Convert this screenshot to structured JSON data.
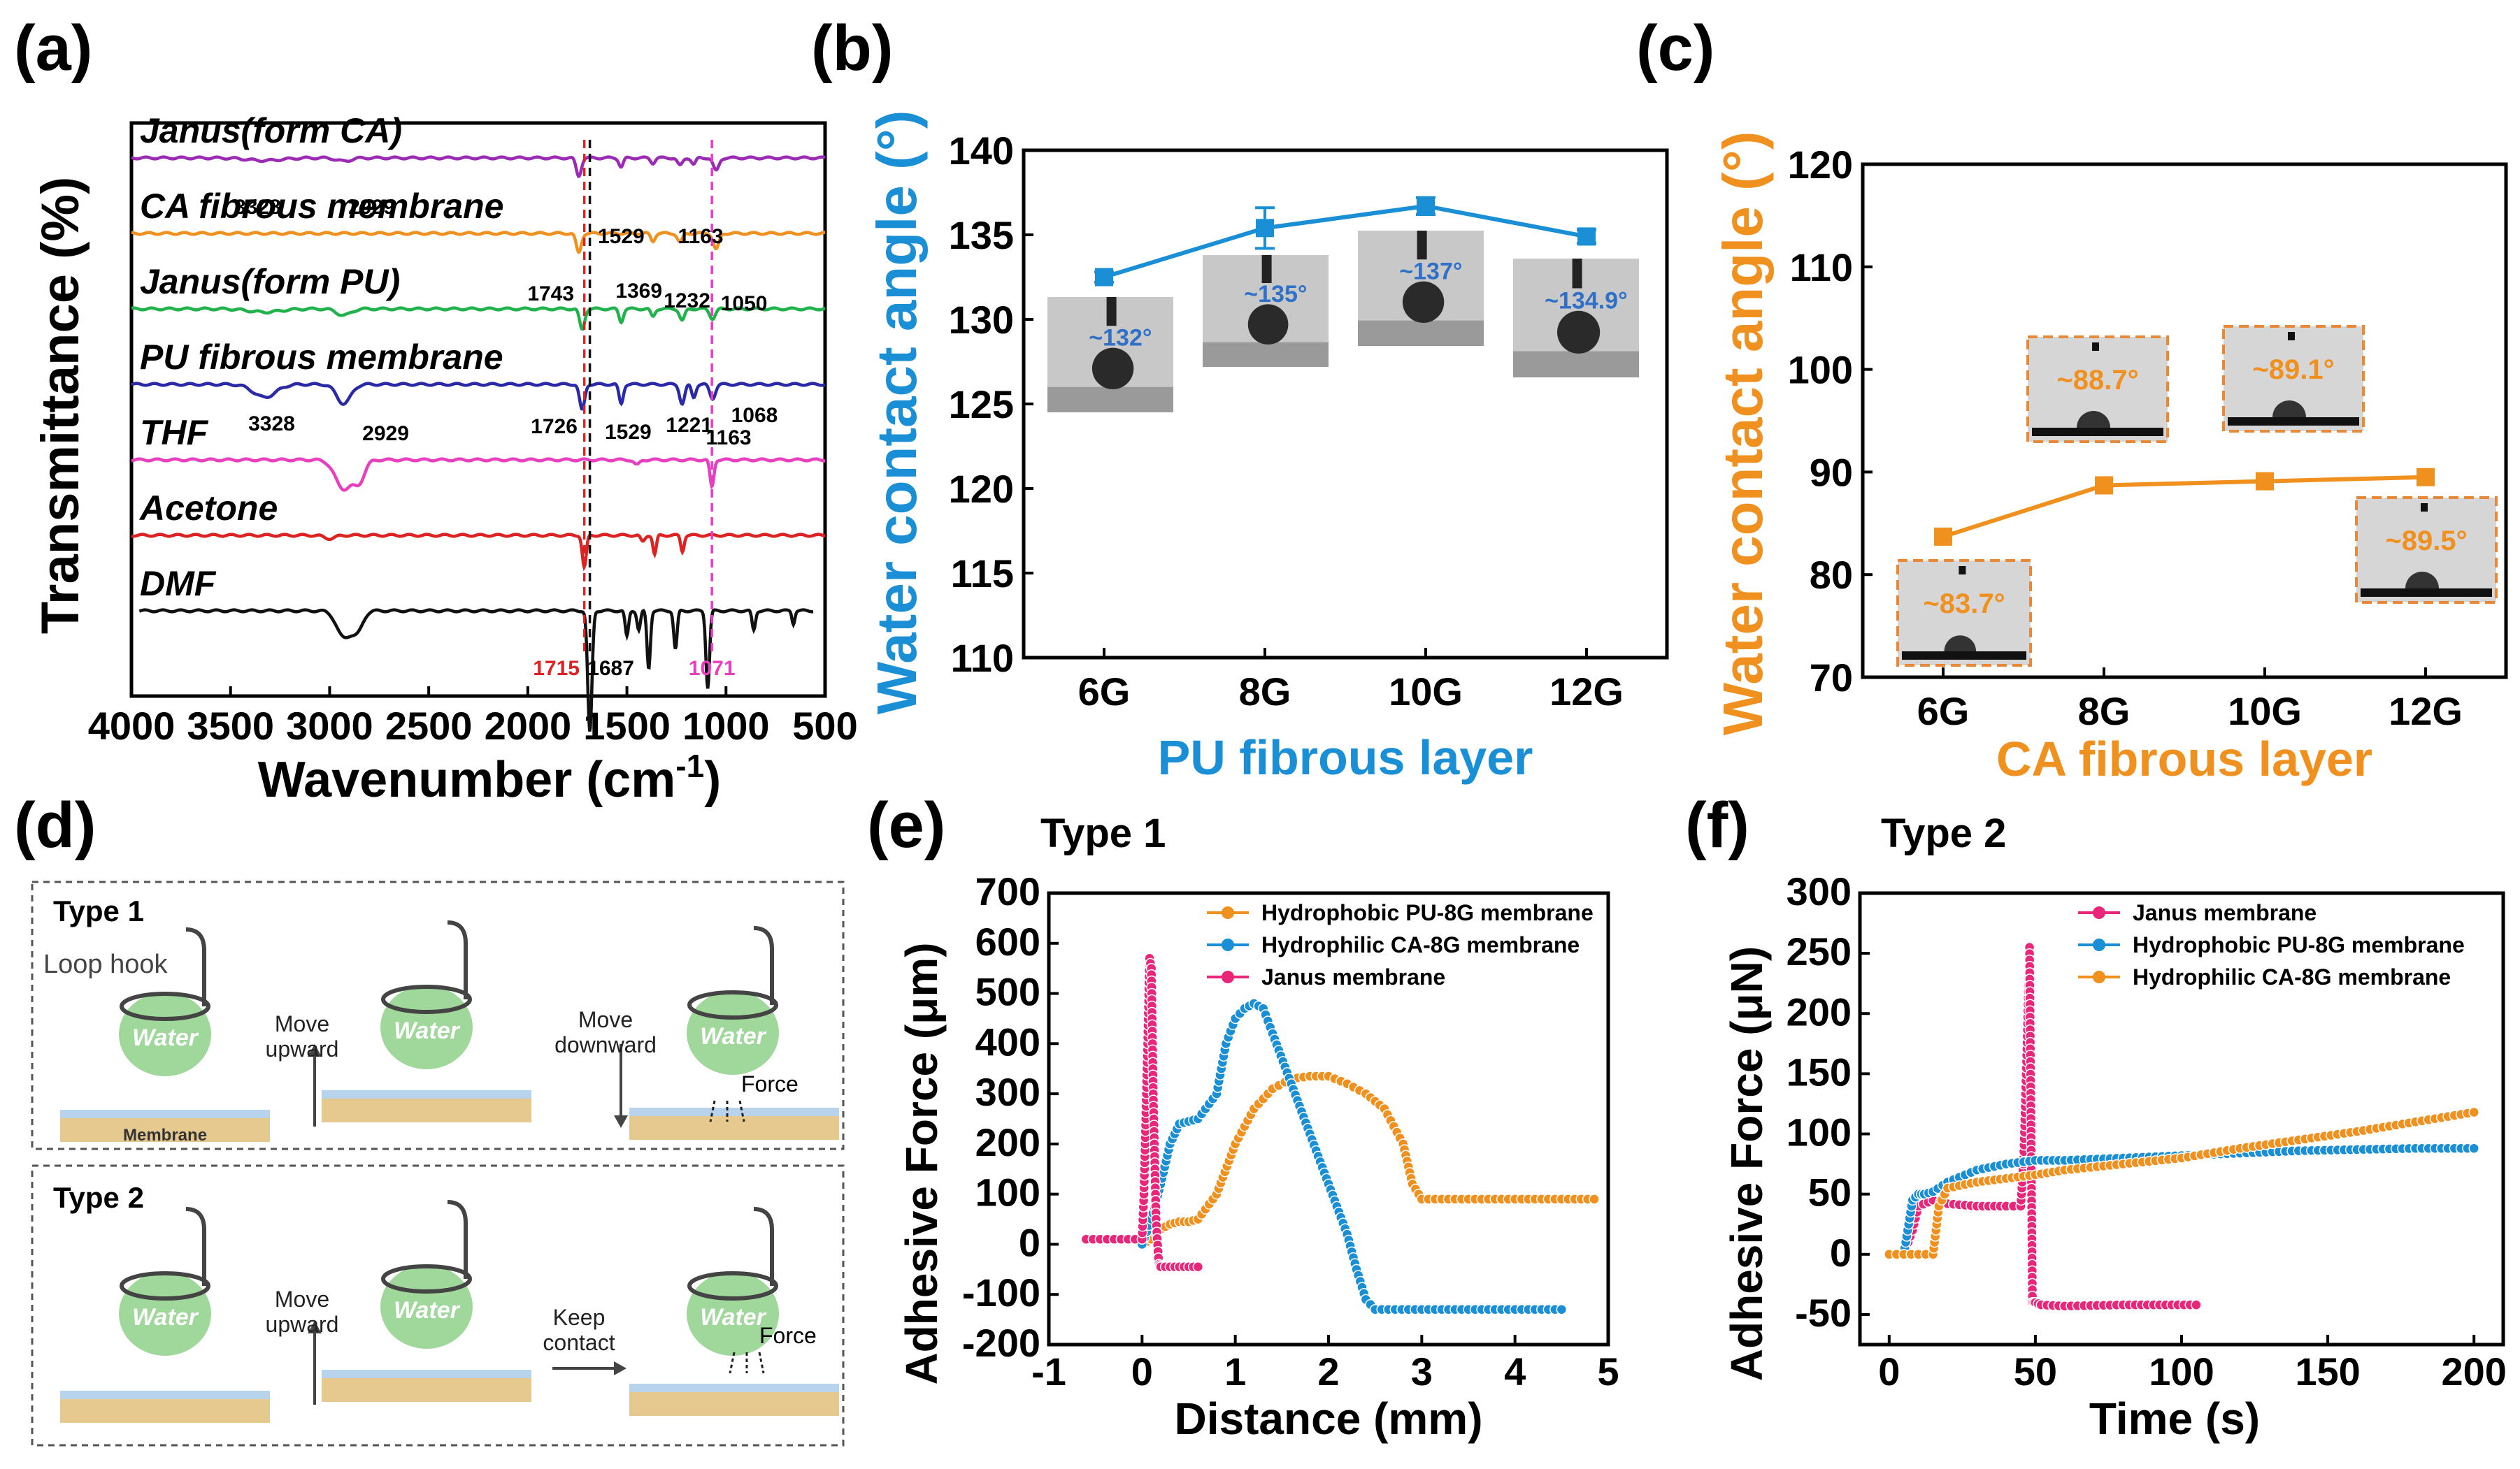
{
  "panel_labels": {
    "a": "(a)",
    "b": "(b)",
    "c": "(c)",
    "d": "(d)",
    "e": "(e)",
    "f": "(f)"
  },
  "chart_data": [
    {
      "panel": "a",
      "type": "line",
      "xlabel": "Wavenumber",
      "xlabel_unit": "(cm",
      "xlabel_sup": "-1",
      "xlabel_close": ")",
      "ylabel": "Transmittance (%)",
      "xlim": [
        4000,
        500
      ],
      "xticks": [
        4000,
        3500,
        3000,
        2500,
        2000,
        1500,
        1000,
        500
      ],
      "series": [
        {
          "name": "Janus(form CA)",
          "color": "#9b2bb5",
          "baseline": 1.0,
          "peaks": [
            [
              3328,
              0.04,
              120
            ],
            [
              2929,
              0.05,
              50
            ],
            [
              1743,
              0.28,
              18
            ],
            [
              1529,
              0.14,
              15
            ],
            [
              1369,
              0.08,
              15
            ],
            [
              1232,
              0.12,
              18
            ],
            [
              1163,
              0.1,
              15
            ],
            [
              1050,
              0.2,
              20
            ]
          ]
        },
        {
          "name": "CA fibrous membrane",
          "color": "#f0901e",
          "baseline": 2.0,
          "peaks": [
            [
              1743,
              0.3,
              18
            ],
            [
              1369,
              0.12,
              15
            ],
            [
              1232,
              0.14,
              18
            ],
            [
              1050,
              0.25,
              20
            ]
          ]
        },
        {
          "name": "Janus(form PU)",
          "color": "#22b24c",
          "baseline": 3.0,
          "peaks": [
            [
              3328,
              0.05,
              110
            ],
            [
              2929,
              0.1,
              50
            ],
            [
              1726,
              0.32,
              18
            ],
            [
              1529,
              0.2,
              15
            ],
            [
              1369,
              0.12,
              15
            ],
            [
              1221,
              0.18,
              18
            ],
            [
              1068,
              0.15,
              20
            ]
          ]
        },
        {
          "name": "PU fibrous membrane",
          "color": "#2a2aa8",
          "baseline": 4.0,
          "peaks": [
            [
              3328,
              0.2,
              80
            ],
            [
              2929,
              0.3,
              50
            ],
            [
              1726,
              0.4,
              18
            ],
            [
              1529,
              0.3,
              15
            ],
            [
              1221,
              0.3,
              18
            ],
            [
              1163,
              0.2,
              15
            ],
            [
              1068,
              0.22,
              20
            ]
          ]
        },
        {
          "name": "THF",
          "color": "#e83fc0",
          "baseline": 5.0,
          "peaks": [
            [
              2929,
              0.45,
              60
            ],
            [
              2850,
              0.3,
              40
            ],
            [
              1450,
              0.08,
              20
            ],
            [
              1071,
              0.42,
              14
            ]
          ]
        },
        {
          "name": "Acetone",
          "color": "#dd2222",
          "baseline": 6.0,
          "peaks": [
            [
              3000,
              0.05,
              40
            ],
            [
              1715,
              0.5,
              14
            ],
            [
              1420,
              0.1,
              15
            ],
            [
              1360,
              0.3,
              12
            ],
            [
              1220,
              0.25,
              12
            ]
          ]
        },
        {
          "name": "DMF",
          "color": "#111111",
          "baseline": 7.0,
          "peaks": [
            [
              2930,
              0.4,
              50
            ],
            [
              2860,
              0.3,
              40
            ],
            [
              1687,
              1.9,
              15
            ],
            [
              1500,
              0.4,
              12
            ],
            [
              1440,
              0.3,
              12
            ],
            [
              1390,
              0.9,
              12
            ],
            [
              1255,
              0.6,
              12
            ],
            [
              1092,
              1.2,
              13
            ],
            [
              860,
              0.3,
              12
            ],
            [
              660,
              0.2,
              10
            ]
          ]
        }
      ],
      "annotations": [
        "3328",
        "2929",
        "1529",
        "1163",
        "1743",
        "1369",
        "1232",
        "1050",
        "3328",
        "2929",
        "1726",
        "1529",
        "1221",
        "1163",
        "1068"
      ],
      "ref_lines": [
        {
          "x": 1715,
          "color": "#dd2222",
          "label": "1715"
        },
        {
          "x": 1687,
          "color": "#111111",
          "label": "1687"
        },
        {
          "x": 1071,
          "color": "#e83fc0",
          "label": "1071"
        }
      ]
    },
    {
      "panel": "b",
      "type": "line",
      "xlabel": "PU fibrous layer",
      "ylabel": "Water contact angle (°)",
      "categories": [
        "6G",
        "8G",
        "10G",
        "12G"
      ],
      "values": [
        132.5,
        135.4,
        136.7,
        134.9
      ],
      "errors": [
        0.3,
        1.2,
        0.5,
        0.4
      ],
      "ylim": [
        110,
        140
      ],
      "yticks": [
        110,
        115,
        120,
        125,
        130,
        135,
        140
      ],
      "color": "#1a8fd6",
      "insets": [
        "~132°",
        "~135°",
        "~137°",
        "~134.9°"
      ]
    },
    {
      "panel": "c",
      "type": "line",
      "xlabel": "CA fibrous layer",
      "ylabel": "Water contact angle (°)",
      "categories": [
        "6G",
        "8G",
        "10G",
        "12G"
      ],
      "values": [
        83.7,
        88.7,
        89.1,
        89.5
      ],
      "ylim": [
        70,
        120
      ],
      "yticks": [
        70,
        80,
        90,
        100,
        110,
        120
      ],
      "color": "#f0901e",
      "insets": [
        "~83.7°",
        "~88.7°",
        "~89.1°",
        "~89.5°"
      ]
    },
    {
      "panel": "e",
      "type": "scatter",
      "title": "Type 1",
      "xlabel": "Distance (mm)",
      "ylabel": "Adhesive Force (μm)",
      "xlim": [
        -1,
        5
      ],
      "ylim": [
        -200,
        700
      ],
      "xticks": [
        -1,
        0,
        1,
        2,
        3,
        4,
        5
      ],
      "yticks": [
        -200,
        -100,
        0,
        100,
        200,
        300,
        400,
        500,
        600,
        700
      ],
      "legend": "top-right",
      "series": [
        {
          "name": "Hydrophobic PU-8G membrane",
          "color": "#f0901e",
          "x": [
            0.0,
            0.1,
            0.2,
            0.3,
            0.4,
            0.5,
            0.6,
            0.8,
            1.0,
            1.2,
            1.4,
            1.6,
            1.8,
            2.0,
            2.2,
            2.4,
            2.6,
            2.8,
            2.9,
            3.0,
            3.5,
            4.0,
            4.5,
            4.85
          ],
          "y": [
            0,
            10,
            30,
            40,
            45,
            45,
            50,
            100,
            200,
            270,
            310,
            330,
            335,
            335,
            320,
            300,
            270,
            200,
            120,
            90,
            90,
            90,
            90,
            90
          ]
        },
        {
          "name": "Hydrophilic CA-8G membrane",
          "color": "#1a8fd6",
          "x": [
            0.0,
            0.1,
            0.2,
            0.3,
            0.4,
            0.5,
            0.6,
            0.8,
            0.9,
            1.0,
            1.1,
            1.2,
            1.3,
            1.4,
            1.6,
            1.8,
            2.0,
            2.2,
            2.3,
            2.4,
            2.5,
            3.0,
            3.5,
            4.0,
            4.5
          ],
          "y": [
            0,
            50,
            120,
            200,
            240,
            245,
            250,
            300,
            400,
            450,
            470,
            480,
            470,
            420,
            320,
            220,
            120,
            20,
            -50,
            -110,
            -130,
            -130,
            -130,
            -130,
            -130
          ]
        },
        {
          "name": "Janus membrane",
          "color": "#e8267a",
          "x": [
            -0.6,
            -0.3,
            0.0,
            0.02,
            0.04,
            0.06,
            0.08,
            0.1,
            0.12,
            0.15,
            0.18,
            0.2,
            0.3,
            0.4,
            0.5,
            0.6
          ],
          "y": [
            10,
            10,
            10,
            100,
            250,
            400,
            570,
            550,
            300,
            50,
            -40,
            -45,
            -45,
            -45,
            -45,
            -45
          ]
        }
      ]
    },
    {
      "panel": "f",
      "type": "scatter",
      "title": "Type 2",
      "xlabel": "Time (s)",
      "ylabel": "Adhesive Force (μN)",
      "xlim": [
        -10,
        210
      ],
      "ylim": [
        -75,
        300
      ],
      "xticks": [
        0,
        50,
        100,
        150,
        200
      ],
      "yticks": [
        -50,
        0,
        50,
        100,
        150,
        200,
        250,
        300
      ],
      "legend": "top-right",
      "series": [
        {
          "name": "Janus membrane",
          "color": "#e8267a",
          "x": [
            0,
            5,
            8,
            10,
            15,
            20,
            30,
            40,
            45,
            46,
            47,
            48,
            49,
            50,
            52,
            60,
            80,
            105
          ],
          "y": [
            0,
            0,
            20,
            40,
            45,
            42,
            40,
            40,
            40,
            80,
            160,
            255,
            -40,
            -40,
            -42,
            -43,
            -42,
            -42
          ]
        },
        {
          "name": "Hydrophobic PU-8G membrane",
          "color": "#1a8fd6",
          "x": [
            0,
            5,
            8,
            10,
            12,
            15,
            20,
            30,
            40,
            50,
            60,
            80,
            100,
            120,
            140,
            160,
            180,
            200
          ],
          "y": [
            0,
            0,
            45,
            50,
            50,
            52,
            60,
            70,
            75,
            78,
            78,
            80,
            82,
            84,
            86,
            87,
            88,
            88
          ]
        },
        {
          "name": "Hydrophilic CA-8G membrane",
          "color": "#f0901e",
          "x": [
            0,
            5,
            10,
            15,
            17,
            20,
            30,
            40,
            50,
            60,
            80,
            100,
            120,
            140,
            160,
            180,
            200
          ],
          "y": [
            0,
            0,
            0,
            0,
            40,
            55,
            60,
            63,
            66,
            70,
            75,
            80,
            88,
            95,
            102,
            110,
            118
          ]
        }
      ]
    }
  ],
  "diagram_d": {
    "type1_title": "Type 1",
    "type2_title": "Type 2",
    "loop_hook": "Loop hook",
    "water": "Water",
    "membrane": "Membrane",
    "move_upward": [
      "Move",
      "upward"
    ],
    "move_downward": [
      "Move",
      "downward"
    ],
    "keep_contact": [
      "Keep",
      "contact"
    ],
    "force": "Force"
  }
}
